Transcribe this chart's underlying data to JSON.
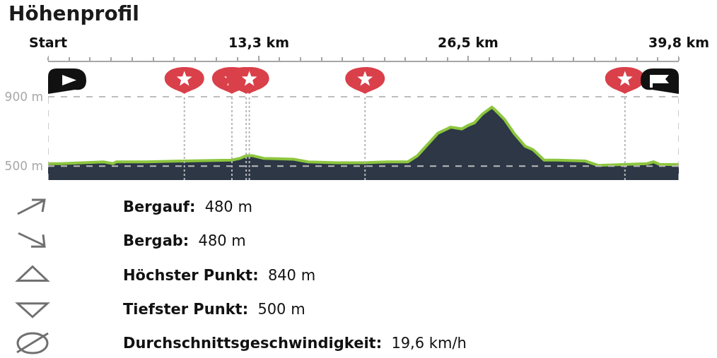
{
  "chart_data": {
    "type": "area",
    "title": "Höhenprofil",
    "x": [
      0,
      0.8,
      2.2,
      3.5,
      4.1,
      4.3,
      6.2,
      8.6,
      11.6,
      12.1,
      12.5,
      12.9,
      13.6,
      15.5,
      16.4,
      18.2,
      19.9,
      21.4,
      22.7,
      23.3,
      24.0,
      24.6,
      25.4,
      26.1,
      26.5,
      26.9,
      27.4,
      28.0,
      28.2,
      28.8,
      29.4,
      30.1,
      30.6,
      31.3,
      32.1,
      33.9,
      34.7,
      36.3,
      37.8,
      38.2,
      38.6,
      39.8
    ],
    "series": [
      {
        "color": "#2d3746",
        "values": [
          515,
          515,
          520,
          525,
          515,
          525,
          525,
          530,
          535,
          545,
          560,
          560,
          545,
          540,
          525,
          520,
          520,
          525,
          525,
          560,
          630,
          690,
          725,
          715,
          735,
          750,
          800,
          840,
          825,
          770,
          690,
          615,
          595,
          535,
          535,
          530,
          505,
          510,
          515,
          525,
          510,
          510
        ]
      }
    ],
    "xlim": [
      0,
      39.8
    ],
    "xticks": [
      {
        "value": 0,
        "label": "Start"
      },
      {
        "value": 1.33,
        "label": null
      },
      {
        "value": 2.65,
        "label": null
      },
      {
        "value": 3.98,
        "label": null
      },
      {
        "value": 5.31,
        "label": null
      },
      {
        "value": 6.63,
        "label": null
      },
      {
        "value": 7.96,
        "label": null
      },
      {
        "value": 9.29,
        "label": null
      },
      {
        "value": 10.61,
        "label": null
      },
      {
        "value": 11.94,
        "label": null
      },
      {
        "value": 13.3,
        "label": "13,3 km"
      },
      {
        "value": 14.59,
        "label": null
      },
      {
        "value": 15.92,
        "label": null
      },
      {
        "value": 17.25,
        "label": null
      },
      {
        "value": 18.57,
        "label": null
      },
      {
        "value": 19.9,
        "label": null
      },
      {
        "value": 21.23,
        "label": null
      },
      {
        "value": 22.55,
        "label": null
      },
      {
        "value": 23.88,
        "label": null
      },
      {
        "value": 25.21,
        "label": null
      },
      {
        "value": 26.5,
        "label": "26,5 km"
      },
      {
        "value": 27.86,
        "label": null
      },
      {
        "value": 29.19,
        "label": null
      },
      {
        "value": 30.51,
        "label": null
      },
      {
        "value": 31.84,
        "label": null
      },
      {
        "value": 33.17,
        "label": null
      },
      {
        "value": 34.49,
        "label": null
      },
      {
        "value": 35.82,
        "label": null
      },
      {
        "value": 37.15,
        "label": null
      },
      {
        "value": 38.47,
        "label": null
      },
      {
        "value": 39.8,
        "label": "39,8 km"
      }
    ],
    "ylim": [
      420,
      1100
    ],
    "yticks": [
      {
        "value": 900,
        "label": "900 m"
      },
      {
        "value": 500,
        "label": "500 m"
      }
    ],
    "grid": "y",
    "ref_lines": [
      {
        "axis": "x",
        "value": 8.6,
        "color": "#b8b8b8",
        "line_style": "dotted"
      },
      {
        "axis": "x",
        "value": 11.6,
        "color": "#b8b8b8",
        "line_style": "dotted"
      },
      {
        "axis": "x",
        "value": 12.5,
        "color": "#b8b8b8",
        "line_style": "dotted"
      },
      {
        "axis": "x",
        "value": 12.7,
        "color": "#b8b8b8",
        "line_style": "dotted"
      },
      {
        "axis": "x",
        "value": 20.0,
        "color": "#b8b8b8",
        "line_style": "dotted"
      },
      {
        "axis": "x",
        "value": 36.4,
        "color": "#b8b8b8",
        "line_style": "dotted"
      }
    ],
    "annotations": [
      "Bergauf: 480 m",
      "Bergab: 480 m",
      "Höchster Punkt: 840 m",
      "Tiefster Punkt: 500 m",
      "Durchschnittsgeschwindigkeit: 19,6 km/h"
    ]
  }
}
